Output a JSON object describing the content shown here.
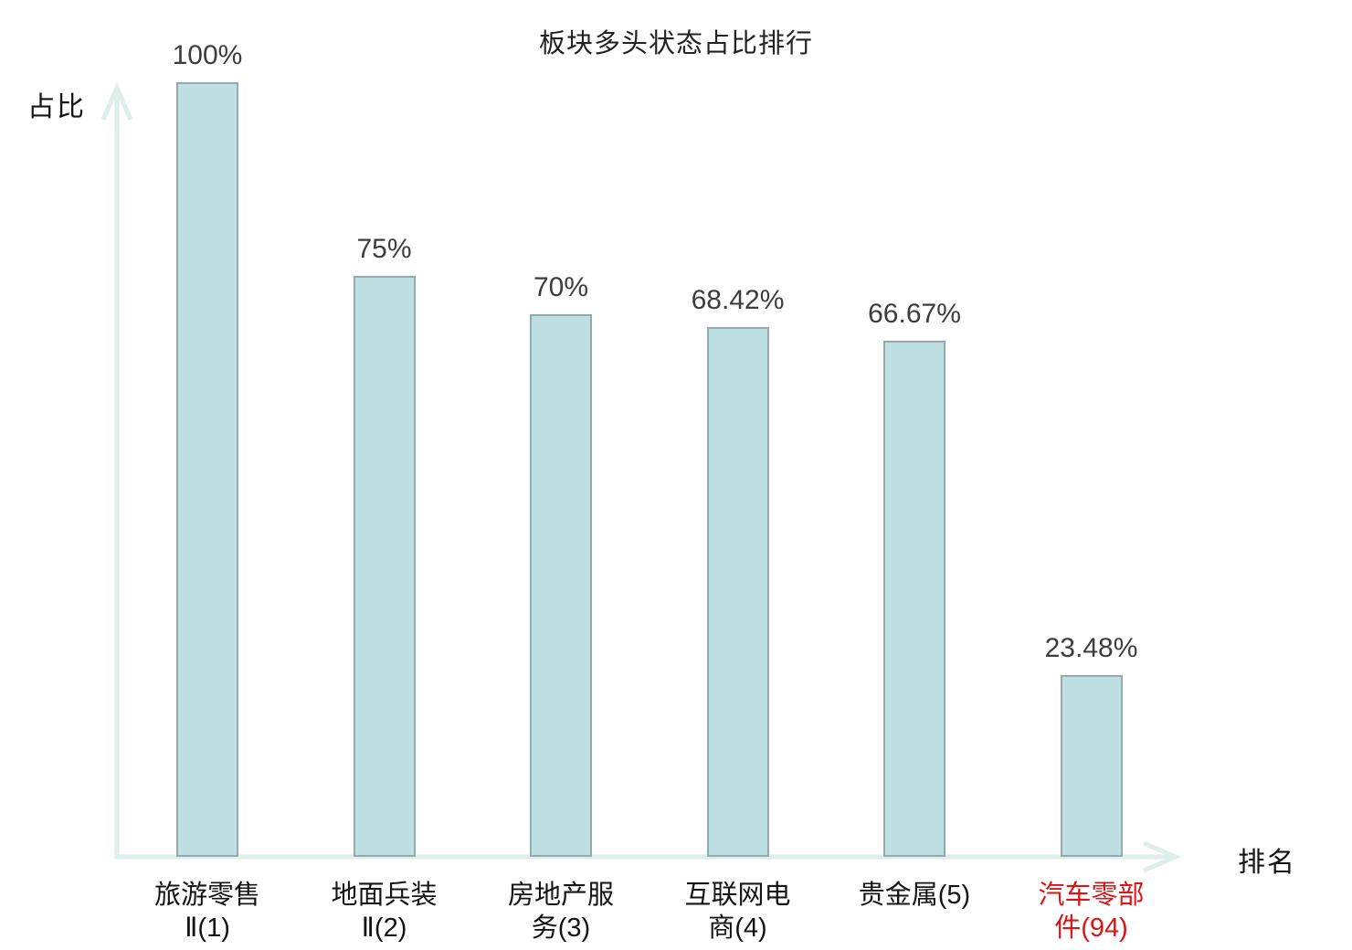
{
  "chart_data": {
    "type": "bar",
    "title": "板块多头状态占比排行",
    "ylabel": "占比",
    "xlabel": "排名",
    "categories": [
      "旅游零售Ⅱ(1)",
      "地面兵装Ⅱ(2)",
      "房地产服务(3)",
      "互联网电商(4)",
      "贵金属(5)",
      "汽车零部件(94)"
    ],
    "category_label_lines": [
      [
        "旅游零售",
        "Ⅱ(1)"
      ],
      [
        "地面兵装",
        "Ⅱ(2)"
      ],
      [
        "房地产服",
        "务(3)"
      ],
      [
        "互联网电",
        "商(4)"
      ],
      [
        "贵金属(5)"
      ],
      [
        "汽车零部",
        "件(94)"
      ]
    ],
    "values": [
      100,
      75,
      70,
      68.42,
      66.67,
      23.48
    ],
    "value_labels": [
      "100%",
      "75%",
      "70%",
      "68.42%",
      "66.67%",
      "23.48%"
    ],
    "highlighted_category_index": 5,
    "ylim": [
      0,
      100
    ],
    "grid": false,
    "legend": "none",
    "colors": {
      "background": "#ffffff",
      "bar_fill": "#bfe0e3",
      "bar_border": "#94aaae",
      "axis": "#ddeeeb",
      "title_text": "#222222",
      "value_text": "#3d3d3d",
      "category_text": "#141414",
      "axis_label_text": "#141414",
      "highlight_text": "#dc1414"
    }
  }
}
